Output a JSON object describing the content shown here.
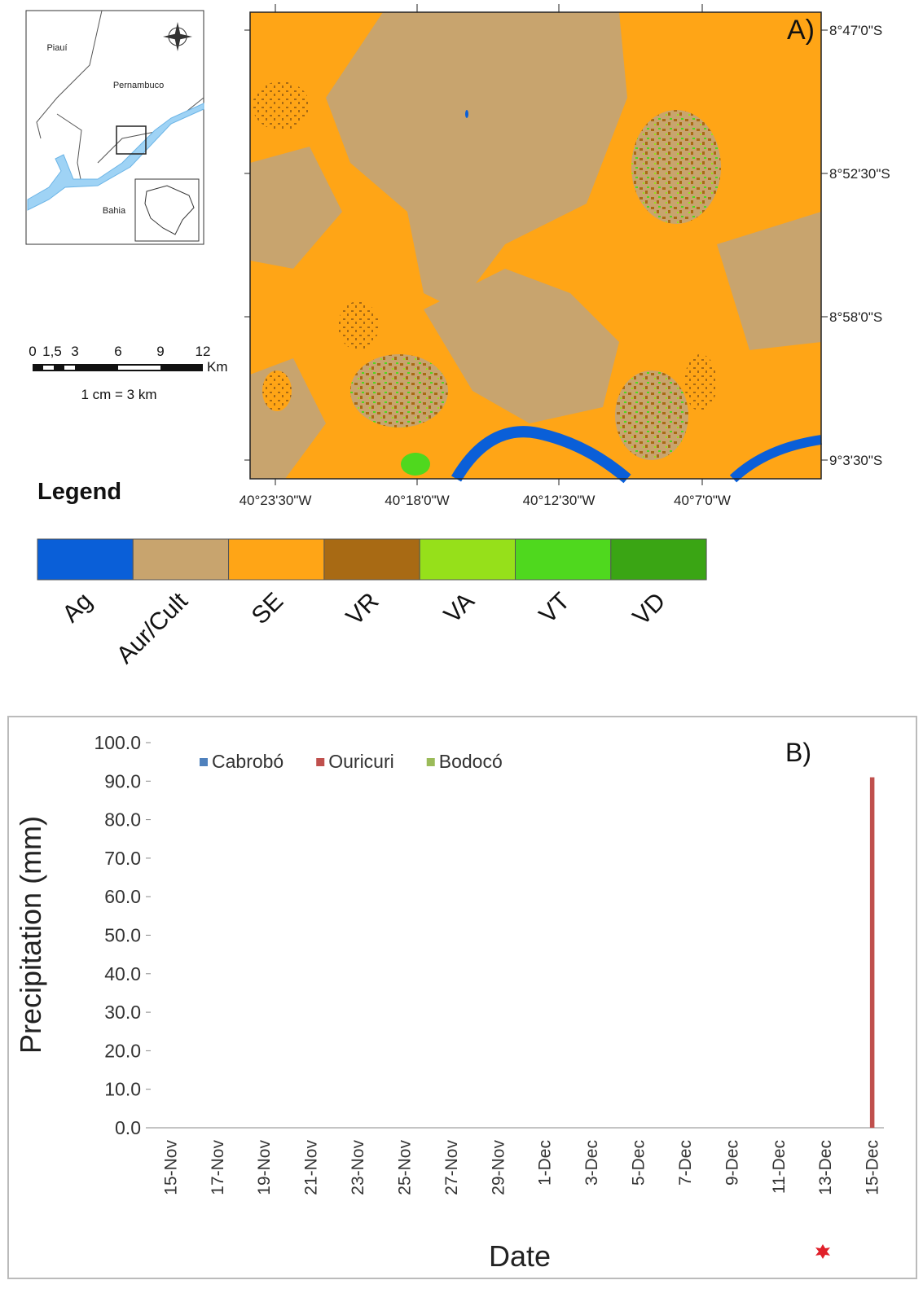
{
  "map": {
    "panel_label": "A)",
    "lat_labels": [
      "8°47'0\"S",
      "8°52'30\"S",
      "8°58'0\"S",
      "9°3'30\"S"
    ],
    "lon_labels": [
      "40°23'30\"W",
      "40°18'0\"W",
      "40°12'30\"W",
      "40°7'0\"W"
    ],
    "inset_labels": [
      "Piauí",
      "Pernambuco",
      "Bahia"
    ],
    "scale_labels": [
      "0",
      "1,5",
      "3",
      "6",
      "9",
      "12"
    ],
    "scale_unit": "Km",
    "scale_note": "1 cm = 3 km",
    "legend_title": "Legend",
    "legend": [
      {
        "label": "Ag",
        "color": "#0a5fd8"
      },
      {
        "label": "Aur/Cult",
        "color": "#c8a46e"
      },
      {
        "label": "SE",
        "color": "#ffa516"
      },
      {
        "label": "VR",
        "color": "#a86a14"
      },
      {
        "label": "VA",
        "color": "#96e01a"
      },
      {
        "label": "VT",
        "color": "#4fd81e"
      },
      {
        "label": "VD",
        "color": "#3aa514"
      }
    ]
  },
  "chart_data": {
    "type": "bar",
    "annotation": "B)",
    "x_label": "Date",
    "y_label": "Precipitation (mm)",
    "categories": [
      "15-Nov",
      null,
      "17-Nov",
      null,
      "19-Nov",
      null,
      "21-Nov",
      null,
      "23-Nov",
      null,
      "25-Nov",
      null,
      "27-Nov",
      null,
      "29-Nov",
      null,
      "1-Dec",
      null,
      "3-Dec",
      null,
      "5-Dec",
      null,
      "7-Dec",
      null,
      "9-Dec",
      null,
      "11-Dec",
      null,
      "13-Dec",
      null,
      "15-Dec"
    ],
    "series": [
      {
        "name": "Cabrobó",
        "color": "#4f81bd",
        "values": [
          0,
          0,
          0,
          0,
          0,
          0,
          0,
          0,
          0,
          0,
          0,
          0,
          0,
          0,
          0,
          0,
          0,
          0,
          0,
          0,
          0,
          0,
          0,
          0,
          0,
          0,
          0,
          0,
          0,
          0,
          0
        ]
      },
      {
        "name": "Ouricuri",
        "color": "#c0504d",
        "values": [
          0,
          0,
          0,
          0,
          0,
          0,
          0,
          0,
          0,
          0,
          0,
          0,
          0,
          0,
          0,
          0,
          0,
          0,
          0,
          0,
          0,
          0,
          0,
          0,
          0,
          0,
          0,
          0,
          0,
          0,
          91
        ]
      },
      {
        "name": "Bodocó",
        "color": "#9bbb59",
        "values": [
          0,
          0,
          0,
          0,
          0,
          0,
          0,
          0,
          0,
          0,
          0,
          0,
          0,
          0,
          0,
          0,
          0,
          0,
          0,
          0,
          0,
          0,
          0,
          0,
          0,
          0,
          0,
          0,
          0,
          0,
          0
        ]
      }
    ],
    "ylim": [
      0,
      100
    ],
    "yticks": [
      {
        "value": 0,
        "label": "0.0"
      },
      {
        "value": 10,
        "label": "10.0"
      },
      {
        "value": 20,
        "label": "20.0"
      },
      {
        "value": 30,
        "label": "30.0"
      },
      {
        "value": 40,
        "label": "40.0"
      },
      {
        "value": 50,
        "label": "50.0"
      },
      {
        "value": 60,
        "label": "60.0"
      },
      {
        "value": 70,
        "label": "70.0"
      },
      {
        "value": 80,
        "label": "80.0"
      },
      {
        "value": 90,
        "label": "90.0"
      },
      {
        "value": 100,
        "label": "100.0"
      }
    ],
    "legend_position": "top-left",
    "grid": false
  }
}
